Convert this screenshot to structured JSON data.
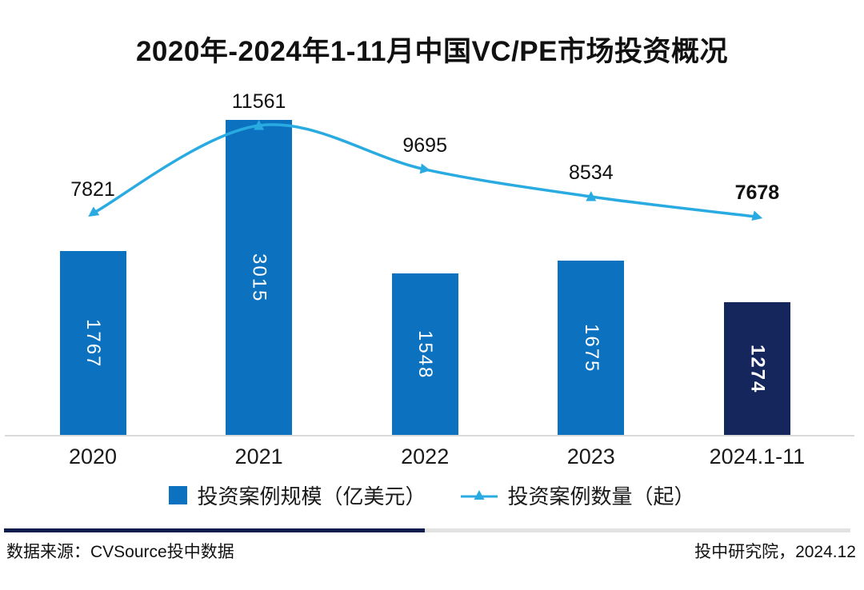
{
  "title": "2020年-2024年1-11月中国VC/PE市场投资概况",
  "chart_data": {
    "type": "bar",
    "combo": "bar+line",
    "categories": [
      "2020",
      "2021",
      "2022",
      "2023",
      "2024.1-11"
    ],
    "series": [
      {
        "name": "投资案例规模（亿美元）",
        "type": "bar",
        "values": [
          1767,
          3015,
          1548,
          1675,
          1274
        ]
      },
      {
        "name": "投资案例数量（起）",
        "type": "line",
        "values": [
          7821,
          11561,
          9695,
          8534,
          7678
        ]
      }
    ],
    "emphasized_category_index": 4,
    "grid": false,
    "legend_position": "bottom",
    "value_labels": "shown",
    "colors": {
      "bar": "#0c72c0",
      "bar_emphasis": "#15265d",
      "line": "#29abe2",
      "axis": "#d9d9d9",
      "bar_label_text": "#ffffff",
      "line_label_text": "#111111"
    }
  },
  "footer": {
    "source": "数据来源：CVSource投中数据",
    "credit": "投中研究院，2024.12",
    "divider_left_color": "#0e1c4d",
    "divider_right_color": "#e2e2e2"
  }
}
